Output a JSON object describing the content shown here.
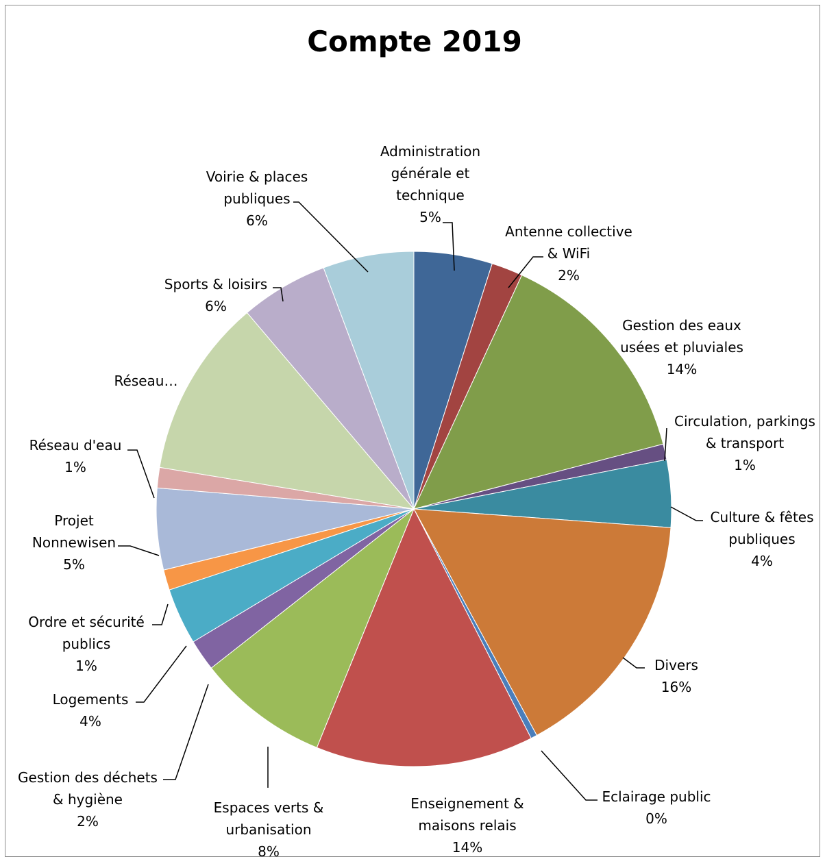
{
  "chart_data": {
    "type": "pie",
    "title": "Compte 2019",
    "slices": [
      {
        "label": [
          "Administration",
          "générale et",
          "technique"
        ],
        "percent_label": "5%",
        "value": 5.0,
        "color": "#3F6797"
      },
      {
        "label": [
          "Antenne collective",
          "& WiFi"
        ],
        "percent_label": "2%",
        "value": 2.0,
        "color": "#A24441"
      },
      {
        "label": [
          "Gestion des eaux",
          "usées et pluviales"
        ],
        "percent_label": "14%",
        "value": 14.3,
        "color": "#809D4A"
      },
      {
        "label": [
          "Circulation, parkings",
          "& transport"
        ],
        "percent_label": "1%",
        "value": 1.0,
        "color": "#664F82"
      },
      {
        "label": [
          "Culture & fêtes",
          "publiques"
        ],
        "percent_label": "4%",
        "value": 4.3,
        "color": "#3A8BA0"
      },
      {
        "label": [
          "Divers"
        ],
        "percent_label": "16%",
        "value": 16.2,
        "color": "#CC7A38"
      },
      {
        "label": [
          "Eclairage public"
        ],
        "percent_label": "0%",
        "value": 0.4,
        "color": "#4A7EBB"
      },
      {
        "label": [
          "Enseignement &",
          "maisons relais"
        ],
        "percent_label": "14%",
        "value": 13.9,
        "color": "#C0504D"
      },
      {
        "label": [
          "Espaces verts &",
          "urbanisation"
        ],
        "percent_label": "8%",
        "value": 8.4,
        "color": "#9BBB59"
      },
      {
        "label": [
          "Gestion des déchets",
          "& hygiène"
        ],
        "percent_label": "2%",
        "value": 2.0,
        "color": "#8064A2"
      },
      {
        "label": [
          "Logements"
        ],
        "percent_label": "4%",
        "value": 3.6,
        "color": "#4BACC6"
      },
      {
        "label": [
          "Ordre et sécurité",
          "publics"
        ],
        "percent_label": "1%",
        "value": 1.3,
        "color": "#F79646"
      },
      {
        "label": [
          "Projet",
          "Nonnewisen"
        ],
        "percent_label": "5%",
        "value": 5.2,
        "color": "#A9B9D8"
      },
      {
        "label": [
          "Réseau d'eau"
        ],
        "percent_label": "1%",
        "value": 1.3,
        "color": "#DBA7A6"
      },
      {
        "label": [
          "Réseau…"
        ],
        "percent_label": "",
        "value": 11.4,
        "color": "#C6D6AB"
      },
      {
        "label": [
          "Sports & loisirs"
        ],
        "percent_label": "6%",
        "value": 5.6,
        "color": "#B9ADCA"
      },
      {
        "label": [
          "Voirie & places",
          "publiques"
        ],
        "percent_label": "6%",
        "value": 5.8,
        "color": "#A9CDDA"
      }
    ]
  }
}
